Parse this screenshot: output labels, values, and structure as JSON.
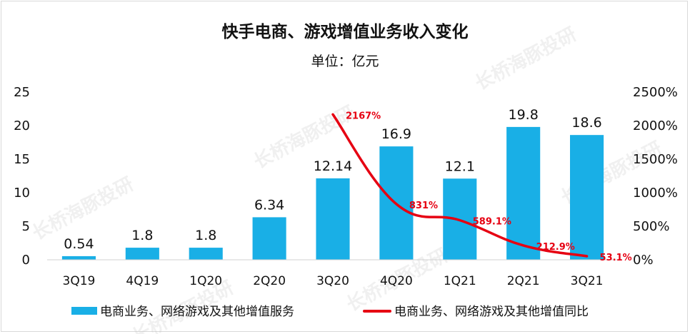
{
  "colors": {
    "bar": "#19afe6",
    "line": "#e60012",
    "line_label": "#e60012"
  },
  "watermark": "长桥海豚投研",
  "chart_data": {
    "type": "bar",
    "title": "快手电商、游戏增值业务收入变化",
    "subtitle": "单位：亿元",
    "categories": [
      "3Q19",
      "4Q19",
      "1Q20",
      "2Q20",
      "3Q20",
      "4Q20",
      "1Q21",
      "2Q21",
      "3Q21"
    ],
    "ylim": [
      0,
      25
    ],
    "yticks": [
      "0",
      "5",
      "10",
      "15",
      "20",
      "25"
    ],
    "y2lim": [
      0,
      25
    ],
    "y2ticks": [
      "0%",
      "500%",
      "1000%",
      "1500%",
      "2000%",
      "2500%"
    ],
    "legend_position": "bottom",
    "series": [
      {
        "name": "电商业务、网络游戏及其他增值服务",
        "type": "bar",
        "axis": "left",
        "values": [
          0.54,
          1.8,
          1.8,
          6.34,
          12.14,
          16.9,
          12.1,
          19.8,
          18.6
        ],
        "labels": [
          "0.54",
          "1.8",
          "1.8",
          "6.34",
          "12.14",
          "16.9",
          "12.1",
          "19.8",
          "18.6"
        ]
      },
      {
        "name": "电商业务、网络游戏及其他增值同比",
        "type": "line",
        "axis": "right",
        "values": [
          null,
          null,
          null,
          null,
          21.67,
          8.31,
          5.891,
          2.129,
          0.531
        ],
        "labels": [
          null,
          null,
          null,
          null,
          "2167%",
          "831%",
          "589.1%",
          "212.9%",
          "53.1%"
        ]
      }
    ]
  }
}
